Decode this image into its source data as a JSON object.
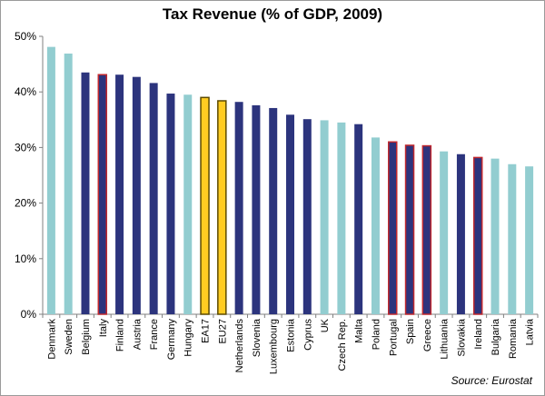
{
  "chart_data": {
    "type": "bar",
    "title": "Tax Revenue (% of GDP, 2009)",
    "source": "Source: Eurostat",
    "ylim": [
      0,
      50
    ],
    "yticks": [
      "0%",
      "10%",
      "20%",
      "30%",
      "40%",
      "50%"
    ],
    "grid": false,
    "categories": [
      "Denmark",
      "Sweden",
      "Belgium",
      "Italy",
      "Finland",
      "Austria",
      "France",
      "Germany",
      "Hungary",
      "EA17",
      "EU27",
      "Netherlands",
      "Slovenia",
      "Luxembourg",
      "Estonia",
      "Cyprus",
      "UK",
      "Czech Rep.",
      "Malta",
      "Poland",
      "Portugal",
      "Spain",
      "Greece",
      "Lithuania",
      "Slovakia",
      "Ireland",
      "Bulgaria",
      "Romania",
      "Latvia"
    ],
    "values": [
      48.1,
      46.9,
      43.5,
      43.1,
      43.1,
      42.7,
      41.6,
      39.7,
      39.5,
      39.0,
      38.4,
      38.2,
      37.6,
      37.1,
      35.9,
      35.1,
      34.9,
      34.5,
      34.2,
      31.8,
      31.0,
      30.4,
      30.3,
      29.3,
      28.8,
      28.2,
      28.0,
      27.0,
      26.6
    ],
    "bar_groups": [
      "light",
      "light",
      "dark",
      "red",
      "dark",
      "dark",
      "dark",
      "dark",
      "light",
      "yellow",
      "yellow",
      "dark",
      "dark",
      "dark",
      "dark",
      "dark",
      "light",
      "light",
      "dark",
      "light",
      "red",
      "red",
      "red",
      "light",
      "dark",
      "red",
      "light",
      "light",
      "light"
    ],
    "colors": {
      "light": "#92cdd0",
      "dark": "#2c347d",
      "red_fill": "#2c347d",
      "red_border": "#c0282e",
      "yellow_fill": "#ffcc22",
      "yellow_border": "#5c4a00"
    }
  }
}
